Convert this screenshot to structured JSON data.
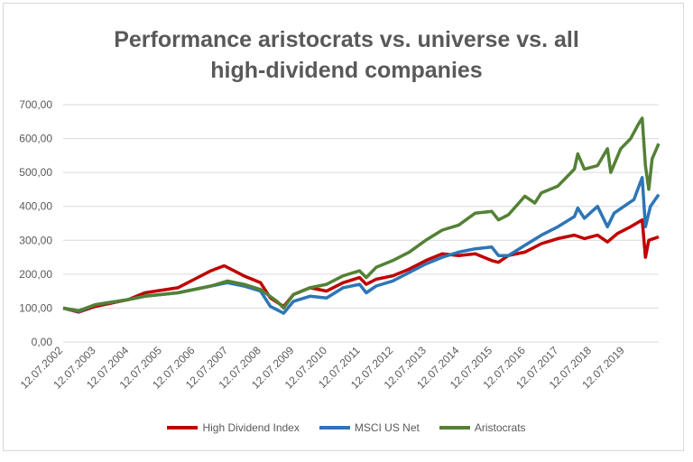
{
  "chart_data": {
    "type": "line",
    "title_lines": [
      "Performance aristocrats vs. universe vs. all",
      "high-dividend companies"
    ],
    "xlabel": "",
    "ylabel": "",
    "ylim": [
      0,
      700
    ],
    "xlim": [
      2002.53,
      2020.55
    ],
    "yticks": [
      "0,00",
      "100,00",
      "200,00",
      "300,00",
      "400,00",
      "500,00",
      "600,00",
      "700,00"
    ],
    "ytick_values": [
      0,
      100,
      200,
      300,
      400,
      500,
      600,
      700
    ],
    "xticks": [
      "12.07.2002",
      "12.07.2003",
      "12.07.2004",
      "12.07.2005",
      "12.07.2006",
      "12.07.2007",
      "12.07.2008",
      "12.07.2009",
      "12.07.2010",
      "12.07.2011",
      "12.07.2012",
      "12.07.2013",
      "12.07.2014",
      "12.07.2015",
      "12.07.2016",
      "12.07.2017",
      "12.07.2018",
      "12.07.2019"
    ],
    "xtick_values": [
      2002.53,
      2003.53,
      2004.53,
      2005.53,
      2006.53,
      2007.53,
      2008.53,
      2009.53,
      2010.53,
      2011.53,
      2012.53,
      2013.53,
      2014.53,
      2015.53,
      2016.53,
      2017.53,
      2018.53,
      2019.53
    ],
    "grid": true,
    "legend_position": "bottom",
    "series": [
      {
        "name": "High Dividend Index",
        "color": "#c00000",
        "x": [
          2002.53,
          2003,
          2003.5,
          2004.5,
          2005,
          2006,
          2006.5,
          2007,
          2007.4,
          2007.6,
          2008,
          2008.5,
          2008.8,
          2009.2,
          2009.5,
          2010,
          2010.5,
          2011,
          2011.5,
          2011.7,
          2012,
          2012.5,
          2013,
          2013.5,
          2014,
          2014.5,
          2015,
          2015.5,
          2015.7,
          2016,
          2016.5,
          2017,
          2017.5,
          2018,
          2018.3,
          2018.7,
          2019,
          2019.3,
          2019.7,
          2020.05,
          2020.15,
          2020.25,
          2020.55
        ],
        "y": [
          100,
          88,
          105,
          125,
          145,
          160,
          185,
          210,
          225,
          215,
          195,
          175,
          130,
          105,
          140,
          160,
          150,
          175,
          190,
          170,
          185,
          195,
          215,
          240,
          260,
          255,
          260,
          240,
          235,
          255,
          265,
          290,
          305,
          315,
          305,
          315,
          295,
          320,
          340,
          360,
          250,
          300,
          310
        ]
      },
      {
        "name": "MSCI US Net",
        "color": "#2e75b6",
        "x": [
          2002.53,
          2003,
          2003.5,
          2004.5,
          2005,
          2006,
          2007,
          2007.5,
          2008,
          2008.5,
          2008.8,
          2009.2,
          2009.5,
          2010,
          2010.5,
          2011,
          2011.5,
          2011.7,
          2012,
          2012.5,
          2013,
          2013.5,
          2014,
          2014.5,
          2015,
          2015.5,
          2015.7,
          2016,
          2016.5,
          2017,
          2017.5,
          2018,
          2018.1,
          2018.3,
          2018.7,
          2019,
          2019.2,
          2019.5,
          2019.8,
          2020.05,
          2020.15,
          2020.3,
          2020.55
        ],
        "y": [
          100,
          90,
          110,
          125,
          135,
          145,
          165,
          175,
          165,
          150,
          105,
          85,
          120,
          135,
          130,
          160,
          170,
          145,
          165,
          180,
          205,
          230,
          250,
          265,
          275,
          280,
          255,
          255,
          285,
          315,
          340,
          370,
          395,
          365,
          400,
          340,
          380,
          400,
          420,
          485,
          340,
          400,
          435
        ]
      },
      {
        "name": "Aristocrats",
        "color": "#538135",
        "x": [
          2002.53,
          2003,
          2003.5,
          2004.5,
          2005,
          2006,
          2007,
          2007.5,
          2008,
          2008.5,
          2009,
          2009.2,
          2009.5,
          2010,
          2010.5,
          2011,
          2011.5,
          2011.7,
          2012,
          2012.5,
          2013,
          2013.5,
          2014,
          2014.5,
          2015,
          2015.5,
          2015.7,
          2016,
          2016.5,
          2016.8,
          2017,
          2017.5,
          2018,
          2018.1,
          2018.3,
          2018.7,
          2019,
          2019.1,
          2019.4,
          2019.7,
          2019.95,
          2020.05,
          2020.15,
          2020.25,
          2020.35,
          2020.55
        ],
        "y": [
          100,
          92,
          110,
          125,
          135,
          145,
          165,
          180,
          170,
          155,
          120,
          100,
          140,
          160,
          170,
          195,
          210,
          190,
          220,
          240,
          265,
          300,
          330,
          345,
          380,
          385,
          360,
          375,
          430,
          410,
          440,
          460,
          510,
          555,
          510,
          520,
          570,
          500,
          570,
          600,
          645,
          660,
          520,
          450,
          540,
          585
        ]
      }
    ]
  }
}
